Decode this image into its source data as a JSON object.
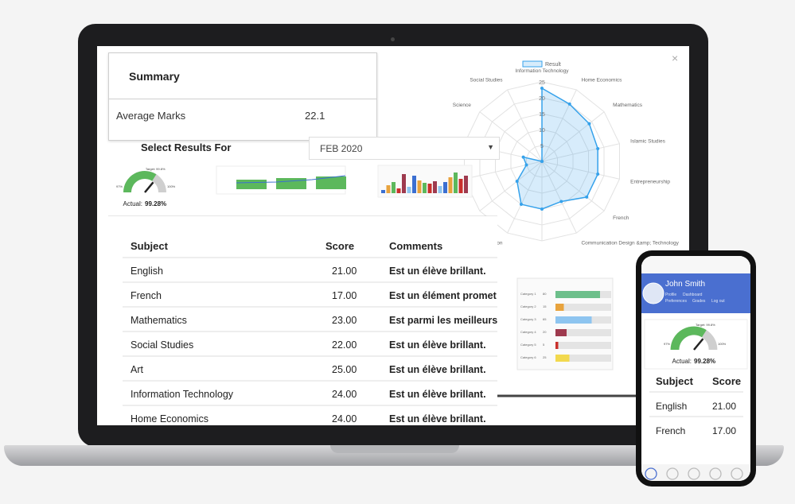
{
  "summary": {
    "title": "Summary",
    "label": "Average Marks",
    "value": "22.1"
  },
  "filter": {
    "label": "Select Results For",
    "selected": "FEB 2020"
  },
  "gauge": {
    "target": "Target: 99.8%",
    "min": "97%",
    "max": "100%",
    "actual_label": "Actual:",
    "actual": "99.28%"
  },
  "table": {
    "headers": [
      "Subject",
      "Score",
      "Comments"
    ],
    "rows": [
      [
        "English",
        "21.00",
        "Est un élève brillant."
      ],
      [
        "French",
        "17.00",
        "Est un élément promet"
      ],
      [
        "Mathematics",
        "23.00",
        "Est parmi les meilleurs"
      ],
      [
        "Social Studies",
        "22.00",
        "Est un élève brillant."
      ],
      [
        "Art",
        "25.00",
        "Est un élève brillant."
      ],
      [
        "Information Technology",
        "24.00",
        "Est un élève brillant."
      ],
      [
        "Home Economics",
        "24.00",
        "Est un élève brillant."
      ]
    ]
  },
  "radar": {
    "type": "radar",
    "legend": "Result",
    "color": "#36a2eb",
    "categories": [
      "Information Technology",
      "Home Economics",
      "Mathematics",
      "Islamic Studies",
      "Entrepreneurship",
      "French",
      "Communication Design &amp; Technology",
      null,
      "Physical Education",
      null,
      null,
      null,
      "Science",
      "Social Studies"
    ],
    "values": [
      23,
      20,
      19,
      18,
      18,
      18,
      14,
      15,
      15,
      10,
      5,
      6,
      0,
      0
    ],
    "rlim": [
      0,
      25
    ],
    "rticks": [
      5,
      10,
      15,
      20,
      25
    ]
  },
  "category_chart": {
    "type": "bar",
    "categories": [
      "Category 1",
      "Category 2",
      "Category 3",
      "Category 4",
      "Category 5",
      "Category 6"
    ],
    "values": [
      80,
      15,
      65,
      20,
      5,
      25
    ],
    "colors": [
      "#6dbf8b",
      "#e8a33d",
      "#8ec5f0",
      "#9e3a4e",
      "#c9302c",
      "#f2d94e"
    ],
    "xlim": [
      0,
      100
    ]
  },
  "phone": {
    "name": "John Smith",
    "menu": [
      "Profile",
      "Dashboard",
      "Preferences",
      "Grades",
      "Log out"
    ],
    "table": {
      "headers": [
        "Subject",
        "Score"
      ],
      "rows": [
        [
          "English",
          "21.00"
        ],
        [
          "French",
          "17.00"
        ]
      ]
    }
  }
}
